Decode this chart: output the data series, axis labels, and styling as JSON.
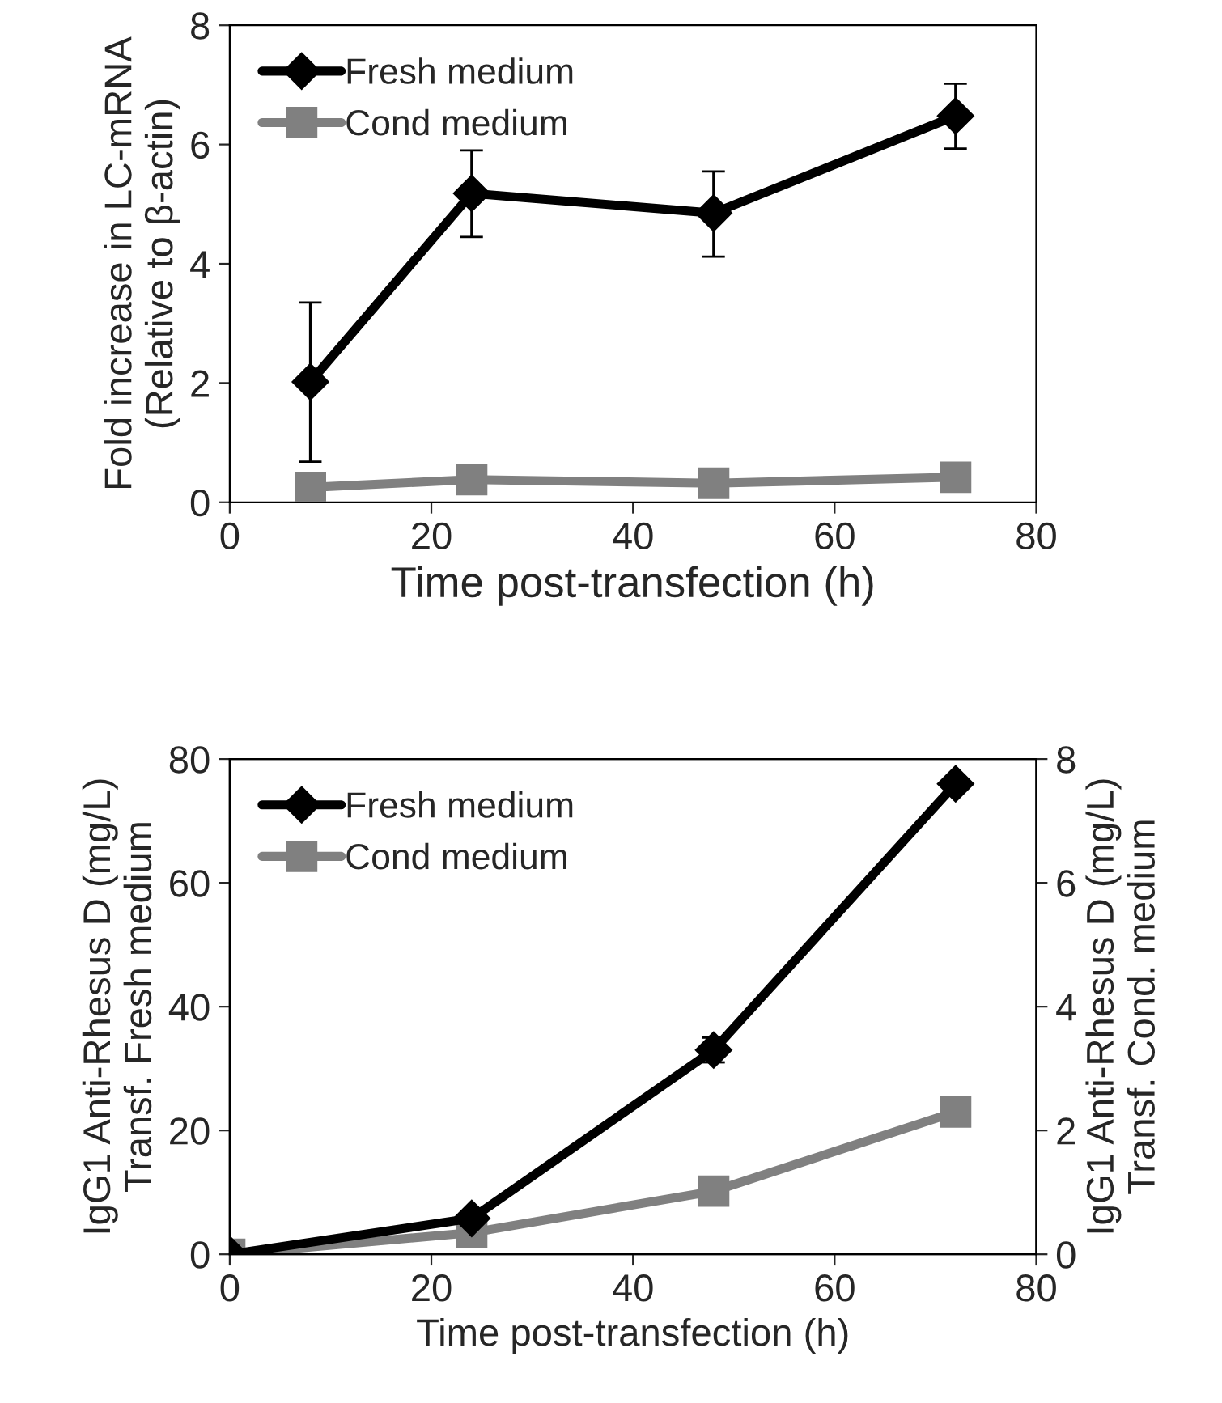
{
  "chart_data": [
    {
      "type": "line",
      "xlabel": "Time post-transfection (h)",
      "ylabel": "Fold increase in LC-mRNA\n(Relative to β-actin)",
      "x": [
        8,
        24,
        48,
        72
      ],
      "xlim": [
        0,
        80
      ],
      "xticks": [
        0,
        20,
        40,
        60,
        80
      ],
      "ylim": [
        0,
        8
      ],
      "yticks": [
        0,
        2,
        4,
        6,
        8
      ],
      "grid": false,
      "legend": "top left",
      "line_style": "solid",
      "series": [
        {
          "name": "Fresh medium",
          "color": "#000000",
          "marker": "diamond",
          "values": [
            2.02,
            5.18,
            4.85,
            6.48
          ],
          "errors": [
            [
              0.68,
              3.35
            ],
            [
              4.45,
              5.9
            ],
            [
              4.12,
              5.55
            ],
            [
              5.93,
              7.02
            ]
          ]
        },
        {
          "name": "Cond medium",
          "color": "#808080",
          "marker": "square",
          "values": [
            0.25,
            0.38,
            0.32,
            0.42
          ]
        }
      ]
    },
    {
      "type": "line",
      "xlabel": "Time post-transfection (h)",
      "ylabel": "IgG1 Anti-Rhesus D (mg/L)\nTransf. Fresh medium",
      "y2label": "IgG1 Anti-Rhesus D (mg/L)\nTransf. Cond. medium",
      "x": [
        0,
        24,
        48,
        72
      ],
      "xlim": [
        0,
        80
      ],
      "xticks": [
        0,
        20,
        40,
        60,
        80
      ],
      "ylim": [
        0,
        80
      ],
      "yticks": [
        0,
        20,
        40,
        60,
        80
      ],
      "y2lim": [
        0,
        8
      ],
      "y2ticks": [
        0,
        2,
        4,
        6,
        8
      ],
      "grid": false,
      "legend": "top left",
      "line_style": "solid",
      "series": [
        {
          "name": "Fresh medium",
          "color": "#000000",
          "marker": "diamond",
          "values": [
            0,
            5.8,
            33,
            76
          ],
          "errors": [
            null,
            null,
            [
              31,
              35
            ],
            null
          ]
        },
        {
          "name": "Cond medium",
          "color": "#808080",
          "marker": "square",
          "axis": "y2",
          "values": [
            0,
            0.35,
            1.02,
            2.3
          ]
        }
      ]
    }
  ]
}
